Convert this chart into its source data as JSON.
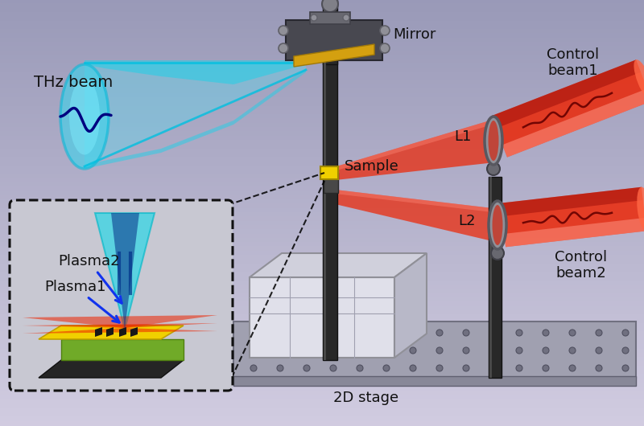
{
  "labels": {
    "thz_beam": "THz beam",
    "mirror": "Mirror",
    "sample": "Sample",
    "control_beam1": "Control\nbeam1",
    "control_beam2": "Control\nbeam2",
    "l1": "L1",
    "l2": "L2",
    "plasma1": "Plasma1",
    "plasma2": "Plasma2",
    "stage_2d": "2D stage"
  },
  "colors": {
    "thz_cone_light": "#40e8f8",
    "thz_cone_mid": "#00c8e0",
    "thz_cone_dark": "#00a0c0",
    "red_beam": "#ee2200",
    "red_beam_light": "#ff6655",
    "red_beam_dark": "#aa1100",
    "yellow_plate": "#f0d000",
    "green_base": "#78b830",
    "dark_metal": "#282828",
    "metal_gray": "#787878",
    "light_metal": "#b8b8c0",
    "blue_arrow": "#1133ee",
    "inset_bg": "#c8c8d4",
    "bg_top": "#9898b8",
    "bg_bottom": "#d0cce0",
    "stage_white": "#dcdce8",
    "table_gray": "#909098"
  },
  "font_sizes": {
    "label": 13,
    "small": 11
  },
  "layout": {
    "fig_w": 8.0,
    "fig_h": 5.3,
    "dpi": 100
  }
}
